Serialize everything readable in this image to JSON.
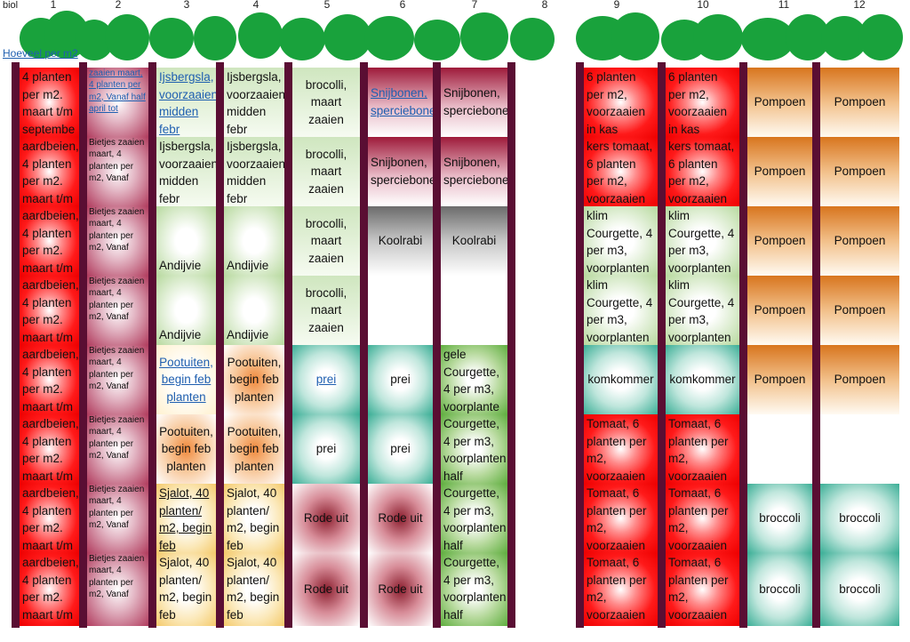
{
  "header": {
    "top_left": "biol",
    "link": "Hoeveel per m2"
  },
  "columns": [
    "1",
    "2",
    "3",
    "4",
    "5",
    "6",
    "7",
    "8",
    "9",
    "10",
    "11",
    "12"
  ],
  "cells": {
    "c1": "aardbeien, 4 planten per m2. maart t/m septembe",
    "c1_first": "4 planten per m2. maart t/m septembe",
    "c2_first": "zaaien maart, 4 planten per m2, Vanaf half april tot",
    "c2": "Bietjes zaaien maart, 4 planten per m2, Vanaf",
    "c3_r1": "Ijsbergsla, voorzaaien midden febr",
    "c3_r2": "Ijsbergsla, voorzaaien midden febr",
    "c3_r3": "Andijvie",
    "c3_r4": "Andijvie",
    "c3_r5": "Pootuiten, begin feb planten",
    "c3_r6": "Pootuiten, begin feb planten",
    "c3_r7": "Sjalot, 40 planten/ m2, begin feb",
    "c3_r8": "Sjalot, 40 planten/ m2, begin feb",
    "c4_r1": "Ijsbergsla, voorzaaien midden febr",
    "c4_r2": "Ijsbergsla, voorzaaien midden febr",
    "c4_r3": "Andijvie",
    "c4_r4": "Andijvie",
    "c4_r5": "Pootuiten, begin feb planten",
    "c4_r6": "Pootuiten, begin feb planten",
    "c4_r7": "Sjalot, 40 planten/ m2, begin feb",
    "c4_r8": "Sjalot, 40 planten/ m2, begin feb",
    "c5_r1": "brocolli, maart zaaien",
    "c5_r2": "brocolli, maart zaaien",
    "c5_r3": "brocolli, maart zaaien",
    "c5_r4": "brocolli, maart zaaien",
    "c5_r5": "prei",
    "c5_r6": "prei",
    "c5_r7": "Rode uit",
    "c5_r8": "Rode uit",
    "c6_r1": "Snijbonen, sperciebonen",
    "c6_r2": "Snijbonen, sperciebonen",
    "c6_r3": "Koolrabi",
    "c6_r5": "prei",
    "c6_r6": "prei",
    "c6_r7": "Rode uit",
    "c6_r8": "Rode uit",
    "c7_r1": "Snijbonen, sperciebonen",
    "c7_r2": "Snijbonen, sperciebonen",
    "c7_r3": "Koolrabi",
    "c7_r5": "gele Courgette, 4 per m3, voorplante",
    "c7_r6": "Courgette, 4 per m3, voorplanten half",
    "c7_r7": "Courgette, 4 per m3, voorplanten half",
    "c7_r8": "Courgette, 4 per m3, voorplanten half",
    "c9_r1": "6 planten per m2, voorzaaien in kas",
    "c9_r2": "kers tomaat, 6 planten per m2, voorzaaien",
    "c9_r3": "klim Courgette, 4 per m3, voorplanten",
    "c9_r4": "klim Courgette, 4 per m3, voorplanten",
    "c9_r5": "komkommer",
    "c9_r6": "Tomaat, 6 planten per m2, voorzaaien",
    "c9_r7": "Tomaat, 6 planten per m2, voorzaaien",
    "c9_r8": "Tomaat, 6 planten per m2, voorzaaien",
    "c10_r1": "6 planten per m2, voorzaaien in kas",
    "c10_r2": "kers tomaat, 6 planten per m2, voorzaaien",
    "c10_r3": "klim Courgette, 4 per m3, voorplanten",
    "c10_r4": "klim Courgette, 4 per m3, voorplanten",
    "c10_r5": "komkommer",
    "c10_r6": "Tomaat, 6 planten per m2, voorzaaien",
    "c10_r7": "Tomaat, 6 planten per m2, voorzaaien",
    "c10_r8": "Tomaat, 6 planten per m2, voorzaaien",
    "pompoen": "Pompoen",
    "broccoli": "broccoli"
  },
  "colors": {
    "separator": "#5a0e33",
    "tree": "#19a23c",
    "link": "#1f5fb0"
  }
}
